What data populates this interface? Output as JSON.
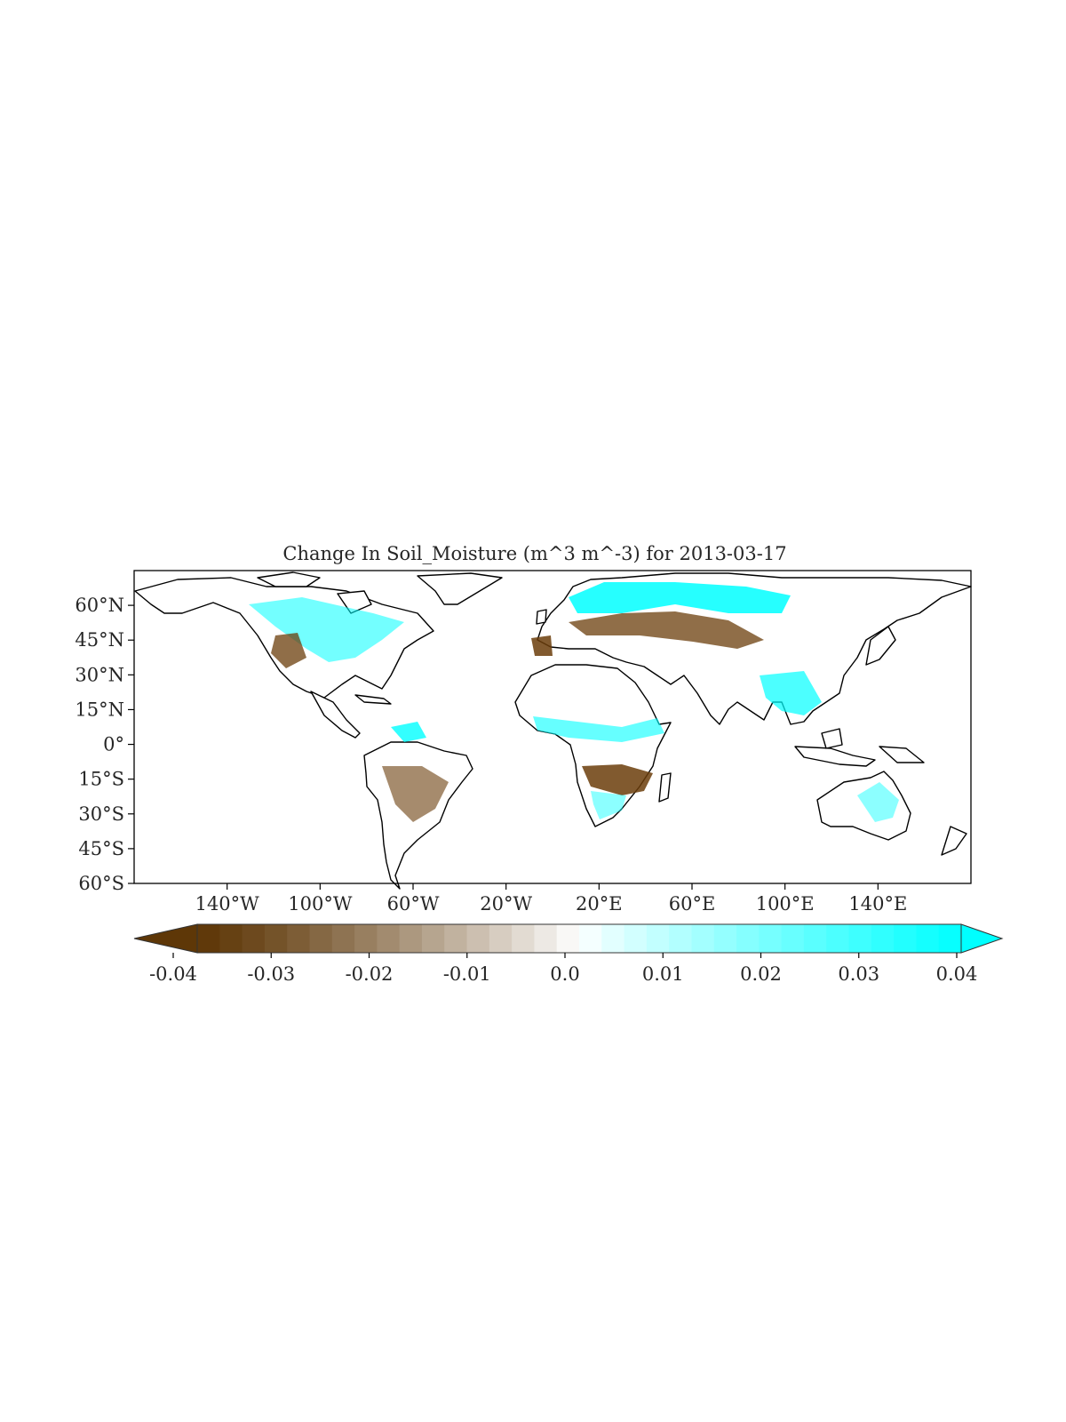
{
  "title": "Change In Soil_Moisture (m^3 m^-3) for 2013-03-17",
  "map": {
    "projection": "PlateCarree",
    "lon_range": [
      -180,
      180
    ],
    "lat_range": [
      -60,
      75
    ],
    "coastlines": true,
    "lat_ticks": [
      {
        "value": 60,
        "label": "60°N"
      },
      {
        "value": 45,
        "label": "45°N"
      },
      {
        "value": 30,
        "label": "30°N"
      },
      {
        "value": 15,
        "label": "15°N"
      },
      {
        "value": 0,
        "label": "0°"
      },
      {
        "value": -15,
        "label": "15°S"
      },
      {
        "value": -30,
        "label": "30°S"
      },
      {
        "value": -45,
        "label": "45°S"
      },
      {
        "value": -60,
        "label": "60°S"
      }
    ],
    "lon_ticks": [
      {
        "value": -140,
        "label": "140°W"
      },
      {
        "value": -100,
        "label": "100°W"
      },
      {
        "value": -60,
        "label": "60°W"
      },
      {
        "value": -20,
        "label": "20°W"
      },
      {
        "value": 20,
        "label": "20°E"
      },
      {
        "value": 60,
        "label": "60°E"
      },
      {
        "value": 100,
        "label": "100°E"
      },
      {
        "value": 140,
        "label": "140°E"
      }
    ],
    "colors": {
      "land_outline": "#000000",
      "dry": "#6b3d0b",
      "wet": "#00ffff"
    }
  },
  "colorbar": {
    "vmin": -0.04,
    "vmax": 0.04,
    "extend": "both",
    "color_low": "#5e3707",
    "color_mid": "#ffffff",
    "color_high": "#00ffff",
    "ticks": [
      {
        "value": -0.04,
        "label": "-0.04"
      },
      {
        "value": -0.03,
        "label": "-0.03"
      },
      {
        "value": -0.02,
        "label": "-0.02"
      },
      {
        "value": -0.01,
        "label": "-0.01"
      },
      {
        "value": 0.0,
        "label": "0.0"
      },
      {
        "value": 0.01,
        "label": "0.01"
      },
      {
        "value": 0.02,
        "label": "0.02"
      },
      {
        "value": 0.03,
        "label": "0.03"
      },
      {
        "value": 0.04,
        "label": "0.04"
      }
    ]
  }
}
